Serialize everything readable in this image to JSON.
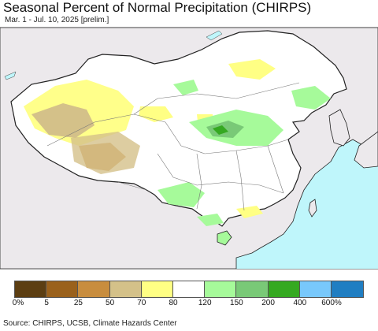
{
  "title": "Seasonal Percent of Normal Precipitation (CHIRPS)",
  "subtitle": "Mar. 1 - Jul. 10, 2025 [prelim.]",
  "source": "Source: CHIRPS, UCSB, Climate Hazards Center",
  "colors": {
    "land_neighbors": "#ece9ec",
    "ocean": "#bff6fb",
    "china_base": "#ffffff",
    "border": "#222222",
    "province_border": "#777777"
  },
  "legend": {
    "colors": [
      "#5c3e12",
      "#9a611c",
      "#c88d3e",
      "#d4c189",
      "#ffff84",
      "#ffffff",
      "#a6fa9a",
      "#79c977",
      "#35a921",
      "#78c8fb",
      "#207ec2"
    ],
    "ticks": [
      "0%",
      "5",
      "25",
      "50",
      "70",
      "80",
      "120",
      "150",
      "200",
      "400",
      "600%"
    ]
  }
}
